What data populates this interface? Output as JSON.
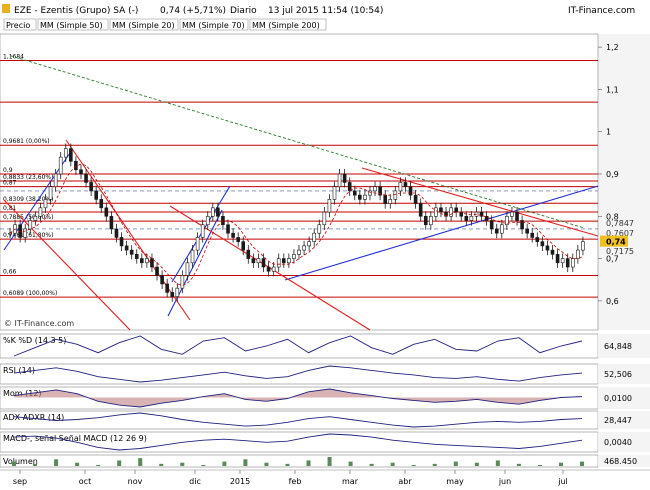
{
  "header": {
    "symbol": "EZE - Ezentis (Grupo) SA (-)",
    "change": "0,74 (+5,71%)",
    "period": "Diario",
    "datetime": "13 jul 2015 11:54 (10:54)",
    "brand": "IT-Finance.com"
  },
  "legend": {
    "price_label": "Precio",
    "items": [
      {
        "label": "MM (Simple 50)",
        "color": "#a9a9ff"
      },
      {
        "label": "MM (Simple 20)",
        "color": "#c00000"
      },
      {
        "label": "MM (Simple 70)",
        "color": "#0000c0"
      },
      {
        "label": "MM (Simple 200)",
        "color": "#006000"
      }
    ]
  },
  "watermark": "© IT-Finance.com",
  "colors": {
    "fib_line": "#c00000",
    "trend_blue": "#2030d0",
    "trend_red": "#e02020",
    "candle": "#1a1a1a",
    "ma200": "#2a7a2a",
    "ma20": "#c00000",
    "price_tag": "#f0c020",
    "indicator_fill": "#c08080"
  },
  "chart_data": [
    {
      "type": "candlestick",
      "title": "EZE - Ezentis (Grupo) SA (-)",
      "ylim": [
        0.55,
        1.25
      ],
      "yticks": [
        "1,2",
        "1,1",
        "1",
        "0,9",
        "0,8",
        "0,7",
        "0,6"
      ],
      "xlabels": [
        "sep",
        "oct",
        "nov",
        "dic",
        "2015",
        "feb",
        "mar",
        "abr",
        "may",
        "jun",
        "jul"
      ],
      "fib_levels": [
        {
          "value": 1.1684,
          "label": "1,1684"
        },
        {
          "value": 1.07,
          "label": ""
        },
        {
          "value": 0.9681,
          "label": "0,9681 (0,00%)"
        },
        {
          "value": 0.9,
          "label": "0,9"
        },
        {
          "value": 0.8833,
          "label": "0,8833 (23,60%)"
        },
        {
          "value": 0.87,
          "label": "0,87"
        },
        {
          "value": 0.8309,
          "label": "0,8309 (38,20%)"
        },
        {
          "value": 0.81,
          "label": "0,81"
        },
        {
          "value": 0.7885,
          "label": "0,7885 (50,00%)"
        },
        {
          "value": 0.7461,
          "label": "0,7461 (61,80%)"
        },
        {
          "value": 0.66,
          "label": "0,66"
        },
        {
          "value": 0.6089,
          "label": "0,6089 (100,00%)"
        }
      ],
      "right_labels": [
        "0,7847",
        "0,7607",
        "0,74",
        "0,7175"
      ],
      "last_price": 0.74,
      "closes": [
        0.76,
        0.78,
        0.75,
        0.77,
        0.79,
        0.8,
        0.82,
        0.84,
        0.87,
        0.9,
        0.94,
        0.96,
        0.93,
        0.91,
        0.9,
        0.88,
        0.86,
        0.84,
        0.82,
        0.8,
        0.77,
        0.75,
        0.73,
        0.72,
        0.71,
        0.7,
        0.69,
        0.7,
        0.68,
        0.66,
        0.64,
        0.62,
        0.61,
        0.63,
        0.66,
        0.69,
        0.72,
        0.75,
        0.78,
        0.8,
        0.82,
        0.8,
        0.78,
        0.76,
        0.75,
        0.74,
        0.72,
        0.7,
        0.69,
        0.7,
        0.68,
        0.67,
        0.68,
        0.7,
        0.69,
        0.7,
        0.71,
        0.72,
        0.73,
        0.74,
        0.76,
        0.78,
        0.81,
        0.84,
        0.87,
        0.9,
        0.88,
        0.86,
        0.85,
        0.84,
        0.85,
        0.86,
        0.87,
        0.85,
        0.83,
        0.84,
        0.86,
        0.88,
        0.87,
        0.85,
        0.83,
        0.8,
        0.78,
        0.8,
        0.82,
        0.81,
        0.8,
        0.82,
        0.81,
        0.8,
        0.79,
        0.8,
        0.81,
        0.8,
        0.79,
        0.77,
        0.76,
        0.78,
        0.8,
        0.81,
        0.79,
        0.77,
        0.76,
        0.75,
        0.74,
        0.73,
        0.72,
        0.71,
        0.69,
        0.7,
        0.68,
        0.7,
        0.72,
        0.74
      ]
    },
    {
      "type": "line",
      "title": "%K %D (14 3 5)",
      "last_value": "64,848",
      "values": [
        20,
        45,
        70,
        55,
        30,
        60,
        80,
        40,
        25,
        65,
        75,
        35,
        50,
        70,
        30,
        60,
        80,
        45,
        25,
        55,
        70,
        40,
        35,
        65,
        75,
        30,
        50,
        65
      ]
    },
    {
      "type": "line",
      "title": "RSI (14)",
      "last_value": "52,506",
      "values": [
        52,
        55,
        58,
        54,
        48,
        45,
        42,
        44,
        47,
        50,
        53,
        49,
        46,
        48,
        55,
        60,
        58,
        55,
        52,
        50,
        47,
        46,
        48,
        45,
        43,
        47,
        50,
        52
      ]
    },
    {
      "type": "area",
      "title": "Mom (12)",
      "last_value": "0,0100",
      "values": [
        0.02,
        0.05,
        0.08,
        0.04,
        -0.04,
        -0.08,
        -0.1,
        -0.06,
        -0.03,
        0.01,
        0.04,
        -0.02,
        -0.04,
        -0.01,
        0.06,
        0.09,
        0.05,
        0.02,
        -0.01,
        -0.03,
        -0.05,
        -0.04,
        -0.02,
        -0.05,
        -0.07,
        -0.03,
        0.0,
        0.01
      ]
    },
    {
      "type": "line",
      "title": "ADX ADXR (14)",
      "last_value": "28,447",
      "values": [
        30,
        28,
        26,
        27,
        29,
        32,
        34,
        31,
        27,
        24,
        22,
        20,
        21,
        24,
        28,
        30,
        27,
        24,
        21,
        19,
        20,
        22,
        24,
        25,
        24,
        25,
        27,
        28
      ]
    },
    {
      "type": "line",
      "title": "MACD-, señal  Señal  MACD (12 26 9)",
      "last_value": "0,0040",
      "values": [
        0.01,
        0.012,
        0.008,
        0.0,
        -0.01,
        -0.015,
        -0.012,
        -0.006,
        0.0,
        0.004,
        0.006,
        0.003,
        0.0,
        0.002,
        0.01,
        0.016,
        0.014,
        0.01,
        0.004,
        0.0,
        -0.004,
        -0.006,
        -0.008,
        -0.01,
        -0.012,
        -0.008,
        -0.002,
        0.004
      ]
    },
    {
      "type": "bar",
      "title": "Volumen",
      "last_value": "468.450",
      "values": [
        6,
        4,
        8,
        5,
        3,
        7,
        9,
        4,
        5,
        3,
        6,
        8,
        5,
        4,
        7,
        10,
        6,
        4,
        5,
        3,
        4,
        6,
        5,
        7,
        4,
        3,
        5,
        6
      ]
    }
  ]
}
